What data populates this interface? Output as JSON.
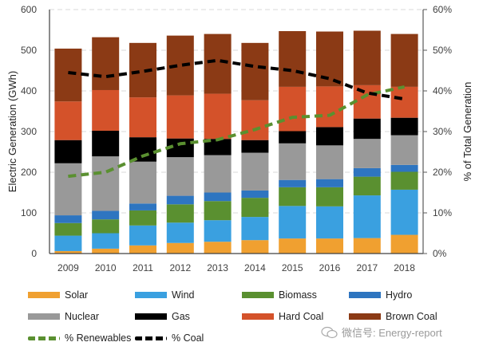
{
  "chart_data": {
    "type": "bar",
    "stacked": true,
    "title": "",
    "xlabel": "",
    "ylabel": "Electric Generation (GWh)",
    "y2label": "% of Total Generation",
    "ylim": [
      0,
      600
    ],
    "y2lim": [
      0,
      60
    ],
    "yticks": [
      "0",
      "100",
      "200",
      "300",
      "400",
      "500",
      "600"
    ],
    "y2ticks": [
      "0%",
      "10%",
      "20%",
      "30%",
      "40%",
      "50%",
      "60%"
    ],
    "grid": true,
    "categories": [
      "2009",
      "2010",
      "2011",
      "2012",
      "2013",
      "2014",
      "2015",
      "2016",
      "2017",
      "2018"
    ],
    "series": [
      {
        "name": "Solar",
        "color": "#F0A030",
        "values": [
          6,
          12,
          20,
          26,
          29,
          33,
          37,
          37,
          38,
          46
        ]
      },
      {
        "name": "Wind",
        "color": "#3AA0E0",
        "values": [
          38,
          38,
          49,
          50,
          53,
          57,
          80,
          79,
          105,
          111
        ]
      },
      {
        "name": "Biomass",
        "color": "#5A9030",
        "values": [
          31,
          34,
          37,
          45,
          47,
          47,
          46,
          47,
          46,
          44
        ]
      },
      {
        "name": "Hydro",
        "color": "#2E75C0",
        "values": [
          19,
          21,
          17,
          21,
          21,
          18,
          18,
          20,
          21,
          17
        ]
      },
      {
        "name": "Nuclear",
        "color": "#999999",
        "values": [
          128,
          134,
          103,
          95,
          92,
          93,
          90,
          83,
          72,
          73
        ]
      },
      {
        "name": "Gas",
        "color": "#000000",
        "values": [
          57,
          63,
          60,
          46,
          40,
          31,
          30,
          45,
          50,
          43
        ]
      },
      {
        "name": "Hard Coal",
        "color": "#D4522A",
        "values": [
          95,
          100,
          98,
          106,
          111,
          98,
          109,
          100,
          82,
          76
        ]
      },
      {
        "name": "Brown Coal",
        "color": "#8B3A15",
        "values": [
          130,
          130,
          134,
          147,
          147,
          141,
          137,
          135,
          134,
          130
        ]
      }
    ],
    "lines": [
      {
        "name": "% Renewables",
        "color": "#5A9030",
        "axis": "right",
        "values": [
          19,
          20,
          24,
          27,
          28,
          30.5,
          33.5,
          34,
          39,
          41
        ]
      },
      {
        "name": "% Coal",
        "color": "#000000",
        "axis": "right",
        "values": [
          44.5,
          43.5,
          44.8,
          46.3,
          47.5,
          46,
          45,
          43,
          39.5,
          38
        ]
      }
    ],
    "legend": {
      "position": "bottom",
      "items": [
        "Solar",
        "Wind",
        "Biomass",
        "Hydro",
        "Nuclear",
        "Gas",
        "Hard Coal",
        "Brown Coal",
        "% Renewables",
        "% Coal"
      ]
    }
  },
  "watermark": {
    "text": "微信号: Energy-report",
    "icon": "wechat-icon"
  }
}
